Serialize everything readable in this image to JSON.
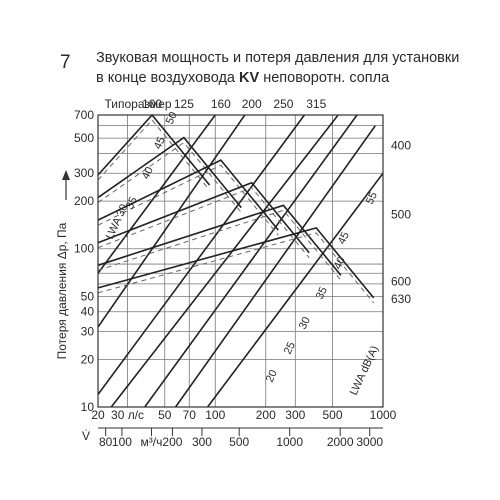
{
  "figure_number": "7",
  "title": {
    "line1": "Звуковая мощность и потеря давления для установки",
    "line2_prefix": "в конце воздуховода ",
    "line2_bold": "KV",
    "line2_suffix": " неповоротн. сопла"
  },
  "chart_data": {
    "type": "line",
    "ylabel": "Потеря давления Δp, Па",
    "yscale": "log",
    "ylim": [
      10,
      700
    ],
    "y_ticks": [
      10,
      20,
      30,
      40,
      50,
      60,
      70,
      80,
      100,
      200,
      300,
      400,
      500,
      600,
      700
    ],
    "y_tick_labels": [
      "10",
      "20",
      "30",
      "40",
      "50",
      "",
      "",
      "",
      "100",
      "200",
      "300",
      "",
      "500",
      "",
      "700"
    ],
    "xscale": "log",
    "xlim_ls": [
      20,
      1000
    ],
    "x_ls_ticks": [
      {
        "v": 20,
        "label": "20"
      },
      {
        "v": 30,
        "label": "30 л/с"
      },
      {
        "v": 50,
        "label": "50"
      },
      {
        "v": 70,
        "label": "70"
      },
      {
        "v": 100,
        "label": "100"
      },
      {
        "v": 200,
        "label": "200"
      },
      {
        "v": 300,
        "label": "300"
      },
      {
        "v": 500,
        "label": "500"
      },
      {
        "v": 1000,
        "label": "1000"
      }
    ],
    "x_m3h_ticks": [
      {
        "v": 80,
        "label": "80"
      },
      {
        "v": 100,
        "label": "100"
      },
      {
        "v": 150,
        "label": "м³/ч"
      },
      {
        "v": 200,
        "label": "200"
      },
      {
        "v": 300,
        "label": "300"
      },
      {
        "v": 500,
        "label": "500"
      },
      {
        "v": 1000,
        "label": "1000"
      },
      {
        "v": 2000,
        "label": "2000"
      },
      {
        "v": 3000,
        "label": "3000"
      }
    ],
    "x_symbol": "V̇",
    "size_header": "Типоразмер",
    "sizes_top": [
      {
        "size": "100",
        "flow_ls": 42
      },
      {
        "size": "125",
        "flow_ls": 65
      },
      {
        "size": "160",
        "flow_ls": 108
      },
      {
        "size": "200",
        "flow_ls": 165
      },
      {
        "size": "250",
        "flow_ls": 255
      },
      {
        "size": "315",
        "flow_ls": 400
      }
    ],
    "sizes_right": [
      {
        "size": "400",
        "dp": 450
      },
      {
        "size": "500",
        "dp": 165
      },
      {
        "size": "600",
        "dp": 62
      },
      {
        "size": "630",
        "dp": 48
      }
    ],
    "sound_power_lines": [
      "LWA 30",
      "35",
      "40",
      "45",
      "50",
      "55",
      "40",
      "45",
      "35",
      "30",
      "25",
      "20",
      "LWA dB(A)"
    ],
    "pressure_lines": [
      {
        "start_ls": 20,
        "start_dp": 12,
        "end_ls": 340,
        "end_dp": 700
      },
      {
        "start_ls": 24,
        "start_dp": 10,
        "end_ls": 540,
        "end_dp": 700
      },
      {
        "start_ls": 38,
        "start_dp": 10,
        "end_ls": 700,
        "end_dp": 700
      },
      {
        "start_ls": 58,
        "start_dp": 10,
        "end_ls": 900,
        "end_dp": 600
      },
      {
        "start_ls": 90,
        "start_dp": 10,
        "end_ls": 1000,
        "end_dp": 300
      },
      {
        "start_ls": 20,
        "start_dp": 32,
        "end_ls": 150,
        "end_dp": 700
      },
      {
        "start_ls": 20,
        "start_dp": 70,
        "end_ls": 100,
        "end_dp": 700
      }
    ]
  }
}
